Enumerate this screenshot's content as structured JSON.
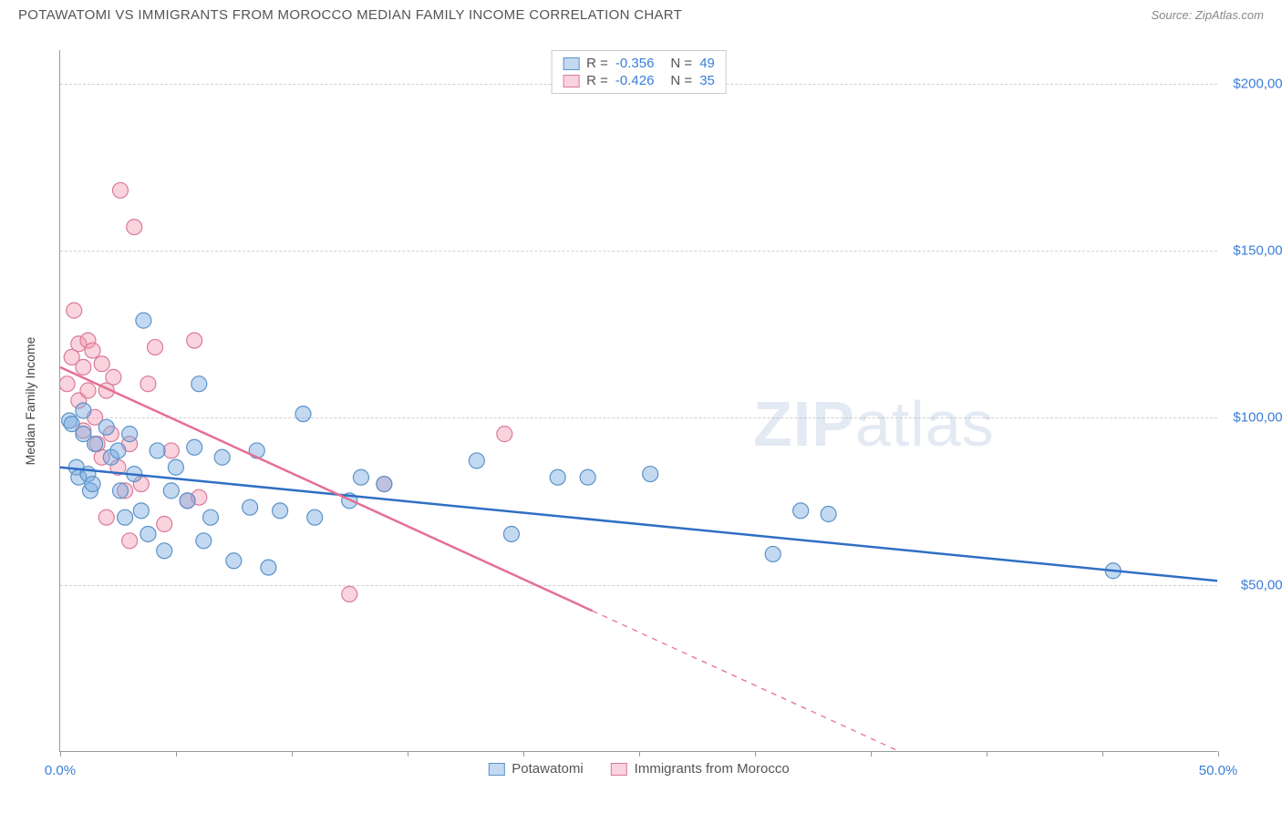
{
  "header": {
    "title": "POTAWATOMI VS IMMIGRANTS FROM MOROCCO MEDIAN FAMILY INCOME CORRELATION CHART",
    "source_prefix": "Source: ",
    "source_name": "ZipAtlas.com"
  },
  "watermark": {
    "zip": "ZIP",
    "atlas": "atlas"
  },
  "chart": {
    "type": "scatter",
    "y_axis_label": "Median Family Income",
    "xlim": [
      0,
      50
    ],
    "ylim": [
      0,
      210000
    ],
    "x_ticks": [
      0,
      5,
      10,
      15,
      20,
      25,
      30,
      35,
      40,
      45,
      50
    ],
    "x_tick_labels": {
      "0": "0.0%",
      "50": "50.0%"
    },
    "y_gridlines": [
      50000,
      100000,
      150000,
      200000
    ],
    "y_tick_labels": {
      "50000": "$50,000",
      "100000": "$100,000",
      "150000": "$150,000",
      "200000": "$200,000"
    },
    "background_color": "#ffffff",
    "grid_color": "#d0d0d0",
    "axis_color": "#999999",
    "marker_radius": 8.5,
    "line_width": 2.5,
    "series": [
      {
        "name": "Potawatomi",
        "color_fill": "rgba(120,170,225,0.45)",
        "color_stroke": "#5b92c9",
        "line_color": "#2f6fc4",
        "R": "-0.356",
        "N": "49",
        "regression": {
          "x1": 0,
          "y1": 85000,
          "x2": 50,
          "y2": 51000,
          "dash_from_x": 50
        },
        "points": [
          [
            0.4,
            99000
          ],
          [
            0.5,
            98000
          ],
          [
            0.7,
            85000
          ],
          [
            0.8,
            82000
          ],
          [
            1.0,
            95000
          ],
          [
            1.0,
            102000
          ],
          [
            1.2,
            83000
          ],
          [
            1.3,
            78000
          ],
          [
            1.4,
            80000
          ],
          [
            1.5,
            92000
          ],
          [
            2.0,
            97000
          ],
          [
            2.2,
            88000
          ],
          [
            2.5,
            90000
          ],
          [
            2.6,
            78000
          ],
          [
            2.8,
            70000
          ],
          [
            3.0,
            95000
          ],
          [
            3.2,
            83000
          ],
          [
            3.5,
            72000
          ],
          [
            3.6,
            129000
          ],
          [
            3.8,
            65000
          ],
          [
            4.2,
            90000
          ],
          [
            4.5,
            60000
          ],
          [
            4.8,
            78000
          ],
          [
            5.0,
            85000
          ],
          [
            5.5,
            75000
          ],
          [
            5.8,
            91000
          ],
          [
            6.0,
            110000
          ],
          [
            6.2,
            63000
          ],
          [
            6.5,
            70000
          ],
          [
            7.0,
            88000
          ],
          [
            7.5,
            57000
          ],
          [
            8.2,
            73000
          ],
          [
            8.5,
            90000
          ],
          [
            9.0,
            55000
          ],
          [
            9.5,
            72000
          ],
          [
            10.5,
            101000
          ],
          [
            11.0,
            70000
          ],
          [
            12.5,
            75000
          ],
          [
            13.0,
            82000
          ],
          [
            14.0,
            80000
          ],
          [
            18.0,
            87000
          ],
          [
            19.5,
            65000
          ],
          [
            21.5,
            82000
          ],
          [
            22.8,
            82000
          ],
          [
            25.5,
            83000
          ],
          [
            30.8,
            59000
          ],
          [
            32.0,
            72000
          ],
          [
            33.2,
            71000
          ],
          [
            45.5,
            54000
          ]
        ]
      },
      {
        "name": "Immigrants from Morocco",
        "color_fill": "rgba(240,150,175,0.42)",
        "color_stroke": "#db7a99",
        "line_color": "#e56f93",
        "R": "-0.426",
        "N": "35",
        "regression": {
          "x1": 0,
          "y1": 115000,
          "x2": 23,
          "y2": 42000,
          "dash_to_x": 40,
          "dash_to_y": -12000
        },
        "points": [
          [
            0.3,
            110000
          ],
          [
            0.5,
            118000
          ],
          [
            0.6,
            132000
          ],
          [
            0.8,
            122000
          ],
          [
            0.8,
            105000
          ],
          [
            1.0,
            115000
          ],
          [
            1.0,
            96000
          ],
          [
            1.2,
            123000
          ],
          [
            1.2,
            108000
          ],
          [
            1.4,
            120000
          ],
          [
            1.5,
            100000
          ],
          [
            1.6,
            92000
          ],
          [
            1.8,
            116000
          ],
          [
            1.8,
            88000
          ],
          [
            2.0,
            108000
          ],
          [
            2.0,
            70000
          ],
          [
            2.2,
            95000
          ],
          [
            2.3,
            112000
          ],
          [
            2.5,
            85000
          ],
          [
            2.6,
            168000
          ],
          [
            2.8,
            78000
          ],
          [
            3.0,
            63000
          ],
          [
            3.0,
            92000
          ],
          [
            3.2,
            157000
          ],
          [
            3.5,
            80000
          ],
          [
            3.8,
            110000
          ],
          [
            4.1,
            121000
          ],
          [
            4.5,
            68000
          ],
          [
            4.8,
            90000
          ],
          [
            5.5,
            75000
          ],
          [
            5.8,
            123000
          ],
          [
            6.0,
            76000
          ],
          [
            12.5,
            47000
          ],
          [
            19.2,
            95000
          ],
          [
            14.0,
            80000
          ]
        ]
      }
    ],
    "legend_bottom": [
      {
        "label": "Potawatomi",
        "fill": "rgba(120,170,225,0.45)",
        "stroke": "#5b92c9"
      },
      {
        "label": "Immigrants from Morocco",
        "fill": "rgba(240,150,175,0.42)",
        "stroke": "#db7a99"
      }
    ]
  }
}
